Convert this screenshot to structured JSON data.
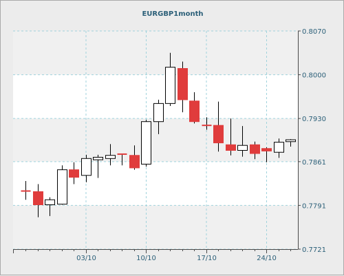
{
  "chart_data": {
    "type": "candlestick",
    "title": "EURGBP1month",
    "y_axis_side": "right",
    "ylim": [
      0.7721,
      0.807
    ],
    "y_ticks": [
      "0.8070",
      "0.8000",
      "0.7930",
      "0.7861",
      "0.7791",
      "0.7721"
    ],
    "x_ticks": [
      {
        "label": "03/10",
        "index": 5
      },
      {
        "label": "10/10",
        "index": 10
      },
      {
        "label": "17/10",
        "index": 15
      },
      {
        "label": "24/10",
        "index": 20
      }
    ],
    "grid": true,
    "colors": {
      "up": "#ffffff",
      "down": "#e03c3c",
      "outline": "#000000",
      "grid": "#9fd2dc",
      "axis": "#4a4a4a",
      "text": "#2b5f78",
      "band": "#f0f0f0"
    },
    "candles": [
      {
        "dir": "down",
        "open": 0.7814,
        "high": 0.783,
        "low": 0.78,
        "close": 0.7813
      },
      {
        "dir": "down",
        "open": 0.7813,
        "high": 0.7825,
        "low": 0.7772,
        "close": 0.7792
      },
      {
        "dir": "up",
        "open": 0.7792,
        "high": 0.7804,
        "low": 0.7774,
        "close": 0.78
      },
      {
        "dir": "up",
        "open": 0.7793,
        "high": 0.7855,
        "low": 0.7792,
        "close": 0.7848
      },
      {
        "dir": "down",
        "open": 0.7848,
        "high": 0.786,
        "low": 0.7825,
        "close": 0.7836
      },
      {
        "dir": "up",
        "open": 0.7839,
        "high": 0.7872,
        "low": 0.7828,
        "close": 0.7866
      },
      {
        "dir": "up",
        "open": 0.7864,
        "high": 0.7872,
        "low": 0.7835,
        "close": 0.7868
      },
      {
        "dir": "up",
        "open": 0.7866,
        "high": 0.7889,
        "low": 0.7855,
        "close": 0.7871
      },
      {
        "dir": "down",
        "open": 0.7873,
        "high": 0.7873,
        "low": 0.7855,
        "close": 0.7873
      },
      {
        "dir": "down",
        "open": 0.7871,
        "high": 0.7887,
        "low": 0.7848,
        "close": 0.7851
      },
      {
        "dir": "up",
        "open": 0.7857,
        "high": 0.7928,
        "low": 0.7853,
        "close": 0.7925
      },
      {
        "dir": "up",
        "open": 0.7925,
        "high": 0.796,
        "low": 0.7905,
        "close": 0.7954
      },
      {
        "dir": "up",
        "open": 0.7954,
        "high": 0.8035,
        "low": 0.795,
        "close": 0.8012
      },
      {
        "dir": "down",
        "open": 0.801,
        "high": 0.8021,
        "low": 0.794,
        "close": 0.796
      },
      {
        "dir": "down",
        "open": 0.7958,
        "high": 0.7972,
        "low": 0.7922,
        "close": 0.7925
      },
      {
        "dir": "down",
        "open": 0.7919,
        "high": 0.7932,
        "low": 0.7912,
        "close": 0.7919
      },
      {
        "dir": "down",
        "open": 0.7919,
        "high": 0.7957,
        "low": 0.7877,
        "close": 0.7891
      },
      {
        "dir": "down",
        "open": 0.7888,
        "high": 0.793,
        "low": 0.7871,
        "close": 0.7879
      },
      {
        "dir": "up",
        "open": 0.7879,
        "high": 0.7918,
        "low": 0.7869,
        "close": 0.7887
      },
      {
        "dir": "down",
        "open": 0.7888,
        "high": 0.7893,
        "low": 0.7865,
        "close": 0.7874
      },
      {
        "dir": "down",
        "open": 0.7882,
        "high": 0.7884,
        "low": 0.786,
        "close": 0.7878
      },
      {
        "dir": "up",
        "open": 0.7876,
        "high": 0.7898,
        "low": 0.7867,
        "close": 0.7892
      },
      {
        "dir": "up",
        "open": 0.7893,
        "high": 0.7897,
        "low": 0.7885,
        "close": 0.7896
      }
    ]
  }
}
